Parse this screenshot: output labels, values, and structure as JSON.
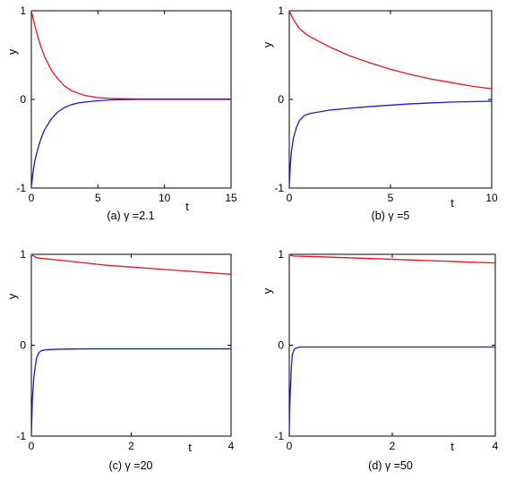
{
  "chart_data": [
    {
      "type": "line",
      "caption": "(a) γ =2.1",
      "xlabel": "t",
      "ylabel": "y",
      "xlim": [
        0,
        15
      ],
      "ylim": [
        -1,
        1
      ],
      "xticks": [
        "0",
        "5",
        "10",
        "15"
      ],
      "yticks": [
        "-1",
        "0",
        "1"
      ],
      "grid": false,
      "series": [
        {
          "color": "#e8141e",
          "x": [
            0,
            0.25,
            0.5,
            0.75,
            1,
            1.5,
            2,
            2.5,
            3,
            3.5,
            4,
            5,
            6,
            8,
            10,
            12,
            15
          ],
          "y": [
            1.0,
            0.84,
            0.7,
            0.58,
            0.48,
            0.33,
            0.23,
            0.15,
            0.1,
            0.07,
            0.045,
            0.02,
            0.01,
            0.005,
            0.005,
            0.005,
            0.005
          ]
        },
        {
          "color": "#1a1ad8",
          "x": [
            0,
            0.1,
            0.25,
            0.5,
            0.75,
            1,
            1.5,
            2,
            2.5,
            3,
            3.5,
            4,
            5,
            6,
            8,
            10,
            12,
            15
          ],
          "y": [
            -1.0,
            -0.85,
            -0.7,
            -0.55,
            -0.43,
            -0.34,
            -0.22,
            -0.14,
            -0.09,
            -0.06,
            -0.04,
            -0.03,
            -0.015,
            -0.005,
            0,
            0,
            0,
            0
          ]
        }
      ]
    },
    {
      "type": "line",
      "caption": "(b) γ =5",
      "xlabel": "t",
      "ylabel": "y",
      "xlim": [
        0,
        10
      ],
      "ylim": [
        -1,
        1
      ],
      "xticks": [
        "0",
        "5",
        "10"
      ],
      "yticks": [
        "-1",
        "0",
        "1"
      ],
      "grid": false,
      "series": [
        {
          "color": "#e8141e",
          "x": [
            0,
            0.2,
            0.5,
            0.8,
            1,
            2,
            3,
            4,
            5,
            6,
            7,
            8,
            9,
            10
          ],
          "y": [
            1.0,
            0.9,
            0.8,
            0.74,
            0.71,
            0.59,
            0.49,
            0.41,
            0.34,
            0.28,
            0.23,
            0.19,
            0.15,
            0.12
          ]
        },
        {
          "color": "#1a1ad8",
          "x": [
            0,
            0.05,
            0.1,
            0.2,
            0.35,
            0.5,
            0.75,
            1,
            1.5,
            2,
            3,
            4,
            5,
            6,
            7,
            8,
            9,
            10
          ],
          "y": [
            -1.0,
            -0.75,
            -0.6,
            -0.44,
            -0.32,
            -0.24,
            -0.18,
            -0.16,
            -0.14,
            -0.12,
            -0.1,
            -0.08,
            -0.065,
            -0.05,
            -0.04,
            -0.03,
            -0.025,
            -0.02
          ]
        }
      ]
    },
    {
      "type": "line",
      "caption": "(c) γ =20",
      "xlabel": "t",
      "ylabel": "y",
      "xlim": [
        0,
        4
      ],
      "ylim": [
        -1,
        1
      ],
      "xticks": [
        "0",
        "2",
        "4"
      ],
      "yticks": [
        "-1",
        "0",
        "1"
      ],
      "grid": false,
      "series": [
        {
          "color": "#e8141e",
          "x": [
            0,
            0.05,
            0.1,
            0.2,
            0.5,
            1,
            1.5,
            2,
            2.5,
            3,
            3.5,
            4
          ],
          "y": [
            1.0,
            0.98,
            0.965,
            0.955,
            0.94,
            0.91,
            0.88,
            0.86,
            0.84,
            0.82,
            0.8,
            0.78
          ]
        },
        {
          "color": "#1a1ad8",
          "x": [
            0,
            0.02,
            0.05,
            0.1,
            0.15,
            0.2,
            0.3,
            0.5,
            1,
            2,
            3,
            4
          ],
          "y": [
            -1.0,
            -0.6,
            -0.35,
            -0.15,
            -0.08,
            -0.06,
            -0.05,
            -0.045,
            -0.04,
            -0.04,
            -0.04,
            -0.04
          ]
        }
      ]
    },
    {
      "type": "line",
      "caption": "(d) γ =50",
      "xlabel": "t",
      "ylabel": "y",
      "xlim": [
        0,
        4
      ],
      "ylim": [
        -1,
        1
      ],
      "xticks": [
        "0",
        "2",
        "4"
      ],
      "yticks": [
        "-1",
        "0",
        "1"
      ],
      "grid": false,
      "series": [
        {
          "color": "#e8141e",
          "x": [
            0,
            0.05,
            0.1,
            0.5,
            1,
            2,
            3,
            4
          ],
          "y": [
            1.0,
            0.985,
            0.98,
            0.975,
            0.965,
            0.945,
            0.925,
            0.905
          ]
        },
        {
          "color": "#1a1ad8",
          "x": [
            0,
            0.01,
            0.02,
            0.04,
            0.06,
            0.1,
            0.2,
            0.5,
            1,
            2,
            3,
            4
          ],
          "y": [
            -1.0,
            -0.7,
            -0.5,
            -0.25,
            -0.1,
            -0.04,
            -0.02,
            -0.02,
            -0.02,
            -0.02,
            -0.02,
            -0.02
          ]
        }
      ]
    }
  ]
}
